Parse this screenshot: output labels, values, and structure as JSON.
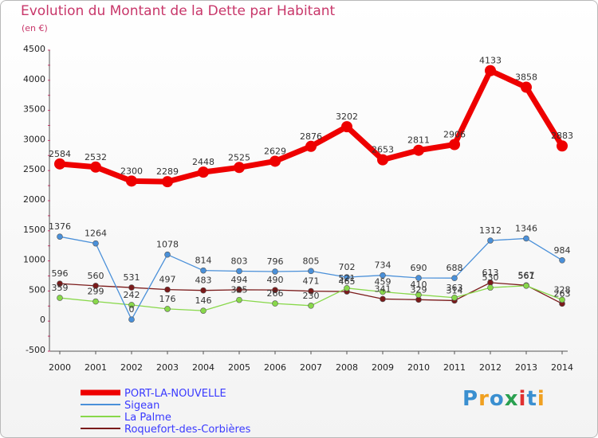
{
  "chart_data": {
    "type": "line",
    "title": "Evolution du Montant de la Dette par Habitant",
    "unit_label": "(en €)",
    "x": [
      "2000",
      "2001",
      "2002",
      "2003",
      "2004",
      "2005",
      "2006",
      "2007",
      "2008",
      "2009",
      "2010",
      "2011",
      "2012",
      "2013",
      "2014"
    ],
    "ylim": [
      -500,
      4500
    ],
    "yticks": [
      -500,
      0,
      500,
      1000,
      1500,
      2000,
      2500,
      3000,
      3500,
      4000,
      4500
    ],
    "grid": false,
    "legend_position": "bottom-left",
    "series": [
      {
        "name": "PORT-LA-NOUVELLE",
        "color": "#ee0000",
        "values": [
          2584,
          2532,
          2300,
          2289,
          2448,
          2525,
          2629,
          2876,
          3202,
          2653,
          2811,
          2906,
          4133,
          3858,
          2883
        ],
        "labels": [
          "2584",
          "2532",
          "2300",
          "2289",
          "2448",
          "2525",
          "2629",
          "2876",
          "3202",
          "2653",
          "2811",
          "2906",
          "4133",
          "3858",
          "2883"
        ]
      },
      {
        "name": "Sigean",
        "color": "#4a90d9",
        "values": [
          1376,
          1264,
          0,
          1078,
          814,
          803,
          796,
          805,
          702,
          734,
          690,
          688,
          1312,
          1346,
          984
        ],
        "labels": [
          "1376",
          "1264",
          "0",
          "1078",
          "814",
          "803",
          "796",
          "805",
          "702",
          "734",
          "690",
          "688",
          "1312",
          "1346",
          "984"
        ]
      },
      {
        "name": "La Palme",
        "color": "#88d84a",
        "values": [
          359,
          299,
          242,
          176,
          146,
          325,
          266,
          230,
          521,
          459,
          410,
          363,
          530,
          561,
          328
        ],
        "labels": [
          "359",
          "299",
          "242",
          "176",
          "146",
          "325",
          "266",
          "230",
          "521",
          "459",
          "410",
          "363",
          "530",
          "561",
          "328"
        ]
      },
      {
        "name": "Roquefort-des-Corbières",
        "color": "#7a1a1a",
        "values": [
          596,
          560,
          531,
          497,
          483,
          494,
          490,
          471,
          465,
          341,
          329,
          314,
          613,
          567,
          263
        ],
        "labels": [
          "596",
          "560",
          "531",
          "497",
          "483",
          "494",
          "490",
          "471",
          "465",
          "341",
          "329",
          "314",
          "613",
          "567",
          "263"
        ]
      }
    ]
  },
  "logo": {
    "text": "Proxiti",
    "colors": [
      "#3a8fd0",
      "#f0a020",
      "#3a8fd0",
      "#2aa050",
      "#e03030",
      "#3a8fd0",
      "#f0a020"
    ]
  }
}
